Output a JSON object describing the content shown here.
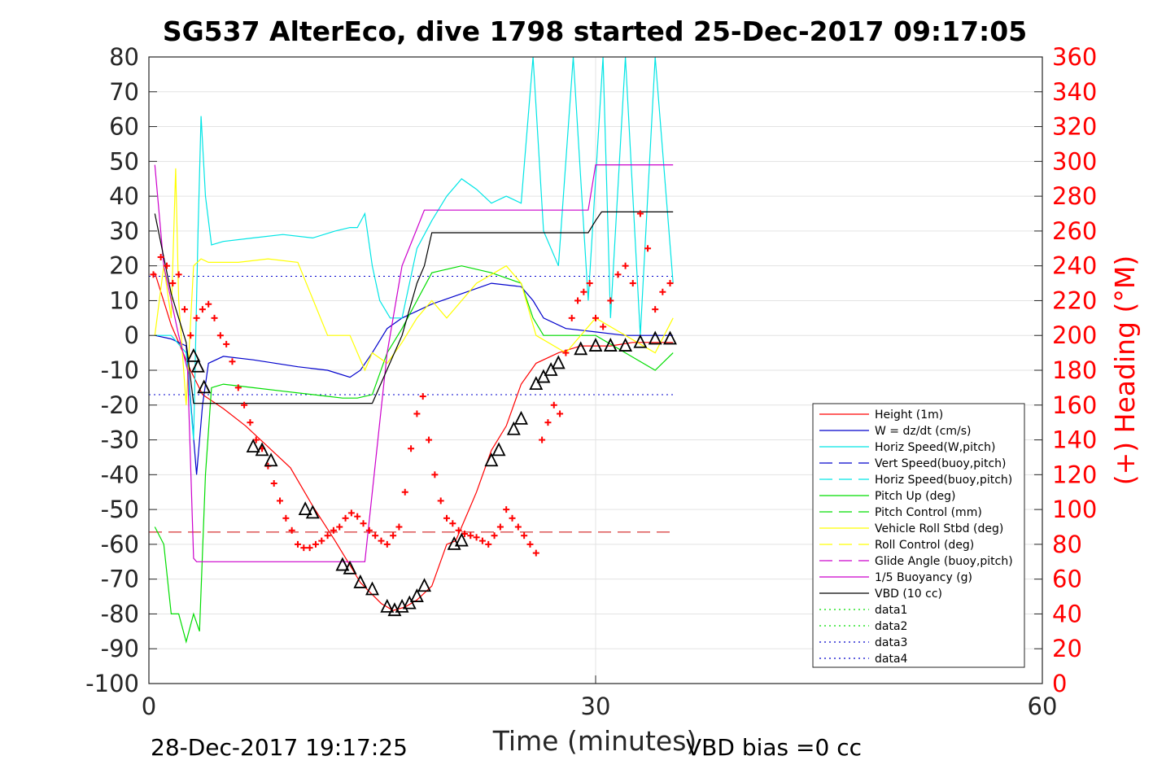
{
  "chart_data": {
    "type": "line",
    "title": "SG537 AlterEco, dive 1798 started 25-Dec-2017 09:17:05",
    "xlabel": "Time (minutes)",
    "ylabel_right": "(+) Heading (°M)",
    "xlim": [
      0,
      60
    ],
    "ylim": [
      -100,
      80
    ],
    "ylim_right": [
      0,
      360
    ],
    "x_ticks": [
      "0",
      "30",
      "60"
    ],
    "y_ticks": [
      "80",
      "70",
      "60",
      "50",
      "40",
      "30",
      "20",
      "10",
      "0",
      "-10",
      "-20",
      "-30",
      "-40",
      "-50",
      "-60",
      "-70",
      "-80",
      "-90",
      "-100"
    ],
    "y_ticks_right": [
      "360",
      "340",
      "320",
      "300",
      "280",
      "260",
      "240",
      "220",
      "200",
      "180",
      "160",
      "140",
      "120",
      "100",
      "80",
      "60",
      "40",
      "20",
      "0"
    ],
    "grid": true,
    "legend_position": "lower-right",
    "footer_left": "28-Dec-2017 19:17:25",
    "footer_right": "VBD bias =0 cc",
    "legend": [
      {
        "name": "Height (1m)",
        "color": "#ff0000",
        "style": "solid"
      },
      {
        "name": "W = dz/dt (cm/s)",
        "color": "#0000cc",
        "style": "solid"
      },
      {
        "name": "Horiz Speed(W,pitch)",
        "color": "#00e5e5",
        "style": "solid"
      },
      {
        "name": "Vert Speed(buoy,pitch)",
        "color": "#0000cc",
        "style": "dashed"
      },
      {
        "name": "Horiz Speed(buoy,pitch)",
        "color": "#00e5e5",
        "style": "dashed"
      },
      {
        "name": "Pitch Up (deg)",
        "color": "#00dd00",
        "style": "solid"
      },
      {
        "name": "Pitch Control (mm)",
        "color": "#00dd00",
        "style": "dashed"
      },
      {
        "name": "Vehicle Roll Stbd (deg)",
        "color": "#ffff00",
        "style": "solid"
      },
      {
        "name": "Roll Control (deg)",
        "color": "#ffff00",
        "style": "dashed"
      },
      {
        "name": "Glide Angle (buoy,pitch)",
        "color": "#cc00cc",
        "style": "dashed"
      },
      {
        "name": "1/5 Buoyancy (g)",
        "color": "#cc00cc",
        "style": "solid"
      },
      {
        "name": "VBD (10 cc)",
        "color": "#000000",
        "style": "solid"
      },
      {
        "name": "data1",
        "color": "#00dd00",
        "style": "dotted"
      },
      {
        "name": "data2",
        "color": "#00dd00",
        "style": "dotted"
      },
      {
        "name": "data3",
        "color": "#0000cc",
        "style": "dotted"
      },
      {
        "name": "data4",
        "color": "#0000cc",
        "style": "dotted"
      }
    ],
    "series": [
      {
        "name": "Height (1m)",
        "color": "#ff0000",
        "x": [
          0.4,
          1.5,
          2.8,
          3.6,
          5.0,
          6.5,
          8.0,
          9.5,
          11.0,
          12.5,
          13.5,
          14.2,
          14.9,
          15.6,
          16.4,
          17.2,
          18.0,
          19.0,
          20.0,
          20.6,
          21.5,
          22.0,
          23.0,
          24.0,
          25.0,
          26.0,
          27.5,
          29.0,
          30.0,
          31.0,
          32.5,
          34.0,
          35.2
        ],
        "y": [
          18,
          3,
          -10,
          -17,
          -21,
          -26,
          -32,
          -38,
          -49,
          -59,
          -66,
          -71,
          -74,
          -77,
          -79,
          -78,
          -76,
          -72,
          -60,
          -59,
          -50,
          -45,
          -33,
          -26,
          -14,
          -8,
          -5,
          -3,
          -3,
          -3,
          -2,
          -2,
          -2
        ]
      },
      {
        "name": "W = dz/dt (cm/s)",
        "color": "#0000cc",
        "x": [
          0.4,
          1.5,
          2.5,
          3.2,
          3.6,
          4.0,
          5.0,
          7.0,
          10.0,
          12.0,
          13.5,
          14.2,
          15.0,
          16.0,
          17.0,
          18.0,
          19.0,
          21.0,
          23.0,
          25.0,
          25.8,
          26.5,
          28.0,
          30.0,
          32.0,
          34.0,
          35.2
        ],
        "y": [
          0,
          -1,
          -3,
          -40,
          -20,
          -8,
          -6,
          -7,
          -9,
          -10,
          -12,
          -10,
          -5,
          2,
          5,
          7,
          9,
          12,
          15,
          14,
          10,
          5,
          2,
          1,
          0,
          0,
          0
        ]
      },
      {
        "name": "Horiz Speed(W,pitch)",
        "color": "#00e5e5",
        "x": [
          0.4,
          1.5,
          2.5,
          3.0,
          3.3,
          3.5,
          3.8,
          4.2,
          5.0,
          7.0,
          9.0,
          11.0,
          12.5,
          13.5,
          14.0,
          14.5,
          15.0,
          15.5,
          16.2,
          17.0,
          18.0,
          19.0,
          20.0,
          21.0,
          22.0,
          23.0,
          24.0,
          25.0,
          25.8,
          26.5,
          27.5,
          28.5,
          29.5,
          30.5,
          31.0,
          32.0,
          33.0,
          34.0,
          35.2
        ],
        "y": [
          0,
          0,
          -5,
          -30,
          30,
          63,
          40,
          26,
          27,
          28,
          29,
          28,
          30,
          31,
          31,
          35,
          20,
          10,
          5,
          5,
          25,
          33,
          40,
          45,
          42,
          38,
          40,
          38,
          80,
          30,
          20,
          80,
          10,
          80,
          5,
          80,
          0,
          80,
          15
        ]
      },
      {
        "name": "Pitch Up (deg)",
        "color": "#00dd00",
        "x": [
          0.4,
          1.0,
          1.5,
          2.0,
          2.5,
          3.0,
          3.4,
          3.8,
          4.2,
          5.0,
          7.0,
          9.0,
          11.0,
          13.0,
          14.0,
          15.0,
          16.0,
          17.0,
          18.0,
          19.0,
          21.0,
          23.0,
          25.0,
          25.8,
          26.5,
          28.0,
          30.0,
          32.0,
          34.0,
          35.2
        ],
        "y": [
          -55,
          -60,
          -80,
          -80,
          -88,
          -80,
          -85,
          -40,
          -15,
          -14,
          -15,
          -16,
          -17,
          -18,
          -18,
          -17,
          -5,
          2,
          10,
          18,
          20,
          18,
          15,
          5,
          0,
          0,
          0,
          -5,
          -10,
          -5
        ]
      },
      {
        "name": "Vehicle Roll Stbd (deg)",
        "color": "#ffff00",
        "x": [
          0.4,
          1.0,
          1.5,
          1.8,
          2.0,
          2.5,
          3.0,
          3.5,
          4.0,
          6.0,
          8.0,
          10.0,
          12.0,
          13.5,
          14.5,
          15.0,
          16.0,
          17.0,
          18.0,
          19.0,
          20.0,
          22.0,
          24.0,
          25.0,
          26.0,
          28.0,
          30.0,
          32.0,
          34.0,
          35.2
        ],
        "y": [
          0,
          20,
          5,
          48,
          10,
          -20,
          20,
          22,
          21,
          21,
          22,
          21,
          0,
          0,
          -10,
          -5,
          -8,
          -2,
          5,
          10,
          5,
          15,
          20,
          15,
          0,
          -5,
          5,
          0,
          -5,
          5
        ]
      },
      {
        "name": "1/5 Buoyancy (g)",
        "color": "#cc00cc",
        "x": [
          0.4,
          1.0,
          2.0,
          2.6,
          3.0,
          3.2,
          6.0,
          14.5,
          16.0,
          17.0,
          18.5,
          28.0,
          29.5,
          30.0,
          35.2
        ],
        "y": [
          49,
          20,
          0,
          -10,
          -64,
          -65,
          -65,
          -65,
          -5,
          20,
          36,
          36,
          36,
          49,
          49
        ]
      },
      {
        "name": "VBD (10 cc)",
        "color": "#000000",
        "x": [
          0.4,
          1.5,
          2.5,
          3.0,
          14.0,
          15.0,
          17.0,
          18.0,
          18.5,
          19.0,
          25.0,
          29.5,
          30.0,
          30.4,
          35.2
        ],
        "y": [
          35,
          12,
          -2,
          -19.5,
          -19.5,
          -19.5,
          0,
          15,
          20,
          29.5,
          29.5,
          29.5,
          33,
          35.5,
          35.5
        ]
      }
    ],
    "reference_lines": [
      {
        "name": "data3",
        "y": 17,
        "color": "#0000cc",
        "style": "dotted"
      },
      {
        "name": "data4",
        "y": -17,
        "color": "#0000cc",
        "style": "dotted"
      },
      {
        "name": "heading-target",
        "y": -56.5,
        "color": "#cc0000",
        "style": "dashed"
      }
    ],
    "heading_points": {
      "name": "(+) Heading (°M)",
      "color": "#ff0000",
      "marker": "+",
      "x": [
        0.3,
        0.8,
        1.2,
        1.6,
        2.0,
        2.4,
        2.8,
        3.2,
        3.6,
        4.0,
        4.4,
        4.8,
        5.2,
        5.6,
        6.0,
        6.4,
        6.8,
        7.2,
        7.6,
        8.0,
        8.4,
        8.8,
        9.2,
        9.6,
        10.0,
        10.4,
        10.8,
        11.2,
        11.6,
        12.0,
        12.4,
        12.8,
        13.2,
        13.6,
        14.0,
        14.4,
        14.8,
        15.2,
        15.6,
        16.0,
        16.4,
        16.8,
        17.2,
        17.6,
        18.0,
        18.4,
        18.8,
        19.2,
        19.6,
        20.0,
        20.4,
        20.8,
        21.2,
        21.6,
        22.0,
        22.4,
        22.8,
        23.2,
        23.6,
        24.0,
        24.4,
        24.8,
        25.2,
        25.6,
        26.0,
        26.4,
        26.8,
        27.2,
        27.6,
        28.0,
        28.4,
        28.8,
        29.2,
        29.6,
        30.0,
        30.5,
        31.0,
        31.5,
        32.0,
        32.5,
        33.0,
        33.5,
        34.0,
        34.5,
        35.0
      ],
      "y": [
        235,
        245,
        240,
        230,
        235,
        215,
        200,
        210,
        215,
        218,
        210,
        200,
        195,
        185,
        170,
        160,
        150,
        140,
        135,
        125,
        115,
        105,
        95,
        88,
        80,
        78,
        78,
        80,
        82,
        85,
        88,
        90,
        95,
        98,
        96,
        92,
        88,
        85,
        82,
        80,
        85,
        90,
        110,
        135,
        155,
        165,
        140,
        120,
        105,
        95,
        92,
        88,
        86,
        85,
        84,
        82,
        80,
        85,
        90,
        100,
        95,
        90,
        85,
        80,
        75,
        140,
        150,
        160,
        155,
        190,
        210,
        220,
        225,
        230,
        210,
        205,
        220,
        235,
        240,
        230,
        270,
        250,
        215,
        225,
        230
      ]
    },
    "triangle_markers": {
      "name": "dive-markers",
      "color": "#000000",
      "x": [
        3.0,
        3.3,
        3.7,
        7.0,
        7.6,
        8.2,
        10.5,
        11.0,
        13.0,
        13.5,
        14.2,
        15.0,
        16.0,
        16.5,
        17.0,
        17.5,
        18.0,
        18.5,
        20.5,
        21.0,
        23.0,
        23.5,
        24.5,
        25.0,
        26.0,
        26.5,
        27.0,
        27.5,
        29.0,
        30.0,
        31.0,
        32.0,
        33.0,
        34.0,
        35.0
      ],
      "y": [
        -6,
        -9,
        -15,
        -32,
        -33,
        -36,
        -50,
        -51,
        -66,
        -67,
        -71,
        -73,
        -78,
        -79,
        -78,
        -77,
        -75,
        -72,
        -60,
        -59,
        -36,
        -33,
        -27,
        -24,
        -14,
        -12,
        -10,
        -8,
        -4,
        -3,
        -3,
        -3,
        -2,
        -1,
        -1
      ]
    }
  }
}
